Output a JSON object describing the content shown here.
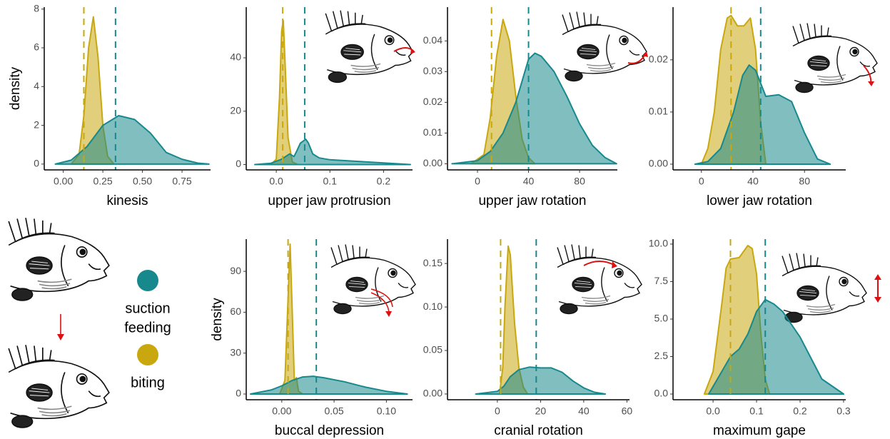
{
  "chart_data": [
    {
      "type": "area",
      "xlabel": "kinesis",
      "ylabel": "density",
      "xlim": [
        -0.12,
        0.93
      ],
      "ylim": [
        -0.3,
        8.1
      ],
      "xticks": [
        {
          "value": 0,
          "label": "0.00"
        },
        {
          "value": 0.25,
          "label": "0.25"
        },
        {
          "value": 0.5,
          "label": "0.50"
        },
        {
          "value": 0.75,
          "label": "0.75"
        }
      ],
      "yticks": [
        0,
        2,
        4,
        6,
        8
      ],
      "series": [
        {
          "color": "#c8a80e",
          "x": [
            0.05,
            0.1,
            0.13,
            0.16,
            0.19,
            0.22,
            0.25,
            0.28,
            0.32
          ],
          "values": [
            0,
            0.5,
            2.5,
            6,
            7.6,
            5.5,
            2,
            0.4,
            0
          ]
        },
        {
          "color": "#17898d",
          "x": [
            -0.05,
            0.05,
            0.15,
            0.25,
            0.35,
            0.45,
            0.55,
            0.65,
            0.75,
            0.85,
            0.92
          ],
          "values": [
            0,
            0.2,
            0.9,
            2.0,
            2.5,
            2.3,
            1.6,
            0.6,
            0.25,
            0.05,
            0
          ]
        }
      ],
      "mean_lines": [
        {
          "value": 0.13,
          "color": "#c8a80e"
        },
        {
          "value": 0.33,
          "color": "#17898d"
        }
      ]
    },
    {
      "type": "area",
      "xlabel": "upper jaw protrusion",
      "xlim": [
        -0.056,
        0.254
      ],
      "ylim": [
        -2,
        59
      ],
      "xticks": [
        {
          "value": 0,
          "label": "0.0"
        },
        0.1,
        0.2
      ],
      "yticks": [
        0,
        20,
        40
      ],
      "series": [
        {
          "color": "#c8a80e",
          "x": [
            -0.01,
            0.0,
            0.006,
            0.01,
            0.013,
            0.017,
            0.022,
            0.03,
            0.04
          ],
          "values": [
            0,
            2,
            25,
            50,
            54,
            35,
            10,
            1,
            0
          ]
        },
        {
          "color": "#17898d",
          "x": [
            -0.04,
            -0.01,
            0.01,
            0.025,
            0.033,
            0.038,
            0.045,
            0.055,
            0.06,
            0.068,
            0.08,
            0.1,
            0.15,
            0.2,
            0.25
          ],
          "values": [
            0,
            0.5,
            2,
            4,
            3,
            5,
            8,
            9.5,
            8,
            4,
            2.5,
            1.8,
            1.2,
            0.6,
            0
          ]
        }
      ],
      "mean_lines": [
        {
          "value": 0.012,
          "color": "#c8a80e"
        },
        {
          "value": 0.053,
          "color": "#17898d"
        }
      ]
    },
    {
      "type": "area",
      "xlabel": "upper jaw rotation",
      "xlim": [
        -23.5,
        109.6
      ],
      "ylim": [
        -0.002,
        0.051
      ],
      "xticks": [
        0,
        40,
        80
      ],
      "yticks": [
        {
          "value": 0,
          "label": "0.00"
        },
        0.01,
        0.02,
        0.03,
        0.04
      ],
      "series": [
        {
          "color": "#c8a80e",
          "x": [
            -5,
            5,
            10,
            15,
            20,
            25,
            30,
            35,
            40,
            45
          ],
          "values": [
            0,
            0.003,
            0.015,
            0.035,
            0.047,
            0.04,
            0.022,
            0.008,
            0.002,
            0
          ]
        },
        {
          "color": "#17898d",
          "x": [
            -20,
            0,
            10,
            20,
            30,
            40,
            45,
            50,
            60,
            70,
            80,
            90,
            100,
            109
          ],
          "values": [
            0,
            0.001,
            0.004,
            0.01,
            0.02,
            0.034,
            0.036,
            0.035,
            0.03,
            0.022,
            0.013,
            0.006,
            0.002,
            0
          ]
        }
      ],
      "mean_lines": [
        {
          "value": 11,
          "color": "#c8a80e"
        },
        {
          "value": 40,
          "color": "#17898d"
        }
      ]
    },
    {
      "type": "area",
      "xlabel": "lower jaw rotation",
      "xlim": [
        -22,
        112
      ],
      "ylim": [
        -0.0011,
        0.0301
      ],
      "xticks": [
        0,
        40,
        80
      ],
      "yticks": [
        {
          "value": 0,
          "label": "0.00"
        },
        0.01,
        0.02
      ],
      "series": [
        {
          "color": "#c8a80e",
          "x": [
            0,
            5,
            10,
            15,
            20,
            23,
            28,
            33,
            38,
            42,
            46,
            50
          ],
          "values": [
            0,
            0.003,
            0.01,
            0.022,
            0.028,
            0.0285,
            0.0265,
            0.0265,
            0.028,
            0.022,
            0.008,
            0
          ]
        },
        {
          "color": "#17898d",
          "x": [
            -5,
            5,
            15,
            25,
            32,
            37,
            42,
            50,
            60,
            70,
            80,
            90,
            100
          ],
          "values": [
            0,
            0.0005,
            0.003,
            0.01,
            0.017,
            0.019,
            0.018,
            0.013,
            0.0133,
            0.012,
            0.006,
            0.001,
            0
          ]
        }
      ],
      "mean_lines": [
        {
          "value": 23,
          "color": "#c8a80e"
        },
        {
          "value": 46,
          "color": "#17898d"
        }
      ]
    },
    {
      "type": "area",
      "xlabel": "buccal depression",
      "ylabel": "density",
      "xlim": [
        -0.034,
        0.125
      ],
      "ylim": [
        -4.2,
        113.6
      ],
      "xticks": [
        {
          "value": 0,
          "label": "0.00"
        },
        0.05,
        {
          "value": 0.1,
          "label": "0.10"
        }
      ],
      "yticks": [
        0,
        30,
        60,
        90
      ],
      "series": [
        {
          "color": "#c8a80e",
          "x": [
            -0.002,
            0.003,
            0.006,
            0.008,
            0.01,
            0.012,
            0.014,
            0.016,
            0.02
          ],
          "values": [
            0,
            10,
            70,
            110,
            60,
            10,
            12,
            2,
            0
          ]
        },
        {
          "color": "#17898d",
          "x": [
            -0.03,
            -0.01,
            0.0,
            0.01,
            0.02,
            0.03,
            0.04,
            0.06,
            0.08,
            0.1,
            0.12
          ],
          "values": [
            0,
            3,
            6,
            10,
            12.5,
            13,
            12,
            9,
            5,
            2,
            0
          ]
        }
      ],
      "mean_lines": [
        {
          "value": 0.006,
          "color": "#c8a80e"
        },
        {
          "value": 0.033,
          "color": "#17898d"
        }
      ]
    },
    {
      "type": "area",
      "xlabel": "cranial rotation",
      "xlim": [
        -23.1,
        61.2
      ],
      "ylim": [
        -0.0066,
        0.178
      ],
      "xticks": [
        0,
        20,
        40,
        60
      ],
      "yticks": [
        {
          "value": 0,
          "label": "0.00"
        },
        0.05,
        {
          "value": 0.1,
          "label": "0.10"
        },
        0.15
      ],
      "series": [
        {
          "color": "#c8a80e",
          "x": [
            1,
            2.5,
            3.5,
            5,
            6,
            7,
            8,
            10,
            12,
            14
          ],
          "values": [
            0,
            0.03,
            0.1,
            0.17,
            0.16,
            0.12,
            0.08,
            0.03,
            0.008,
            0
          ]
        },
        {
          "color": "#17898d",
          "x": [
            -10,
            0,
            3,
            6,
            10,
            15,
            20,
            25,
            30,
            35,
            40,
            45,
            50
          ],
          "values": [
            0,
            0.003,
            0.009,
            0.02,
            0.028,
            0.031,
            0.03,
            0.03,
            0.025,
            0.015,
            0.007,
            0.002,
            0
          ]
        }
      ],
      "mean_lines": [
        {
          "value": 1.5,
          "color": "#c8a80e"
        },
        {
          "value": 18,
          "color": "#17898d"
        }
      ]
    },
    {
      "type": "area",
      "xlabel": "maximum gape",
      "xlim": [
        -0.092,
        0.305
      ],
      "ylim": [
        -0.38,
        10.33
      ],
      "xticks": [
        {
          "value": 0,
          "label": "0.0"
        },
        0.1,
        0.2,
        0.3
      ],
      "yticks": [
        {
          "value": 0,
          "label": "0.0"
        },
        2.5,
        {
          "value": 5,
          "label": "5.0"
        },
        7.5,
        {
          "value": 10,
          "label": "10.0"
        }
      ],
      "series": [
        {
          "color": "#c8a80e",
          "x": [
            -0.02,
            0.0,
            0.02,
            0.03,
            0.04,
            0.06,
            0.08,
            0.09,
            0.1,
            0.11,
            0.12,
            0.13
          ],
          "values": [
            0,
            1.5,
            6,
            8.4,
            9,
            9.1,
            9.9,
            9.7,
            8,
            4,
            1,
            0
          ]
        },
        {
          "color": "#17898d",
          "x": [
            -0.01,
            0.02,
            0.04,
            0.06,
            0.08,
            0.1,
            0.12,
            0.14,
            0.16,
            0.2,
            0.25,
            0.3
          ],
          "values": [
            0,
            1.5,
            2.5,
            3,
            4,
            5.5,
            6.3,
            6,
            5.5,
            3.8,
            1,
            0
          ]
        }
      ],
      "mean_lines": [
        {
          "value": 0.04,
          "color": "#c8a80e"
        },
        {
          "value": 0.12,
          "color": "#17898d"
        }
      ]
    }
  ],
  "legend": {
    "items": [
      {
        "lines": [
          "suction",
          "feeding"
        ],
        "color": "#17898d"
      },
      {
        "lines": [
          "biting"
        ],
        "color": "#c8a80e"
      }
    ]
  }
}
